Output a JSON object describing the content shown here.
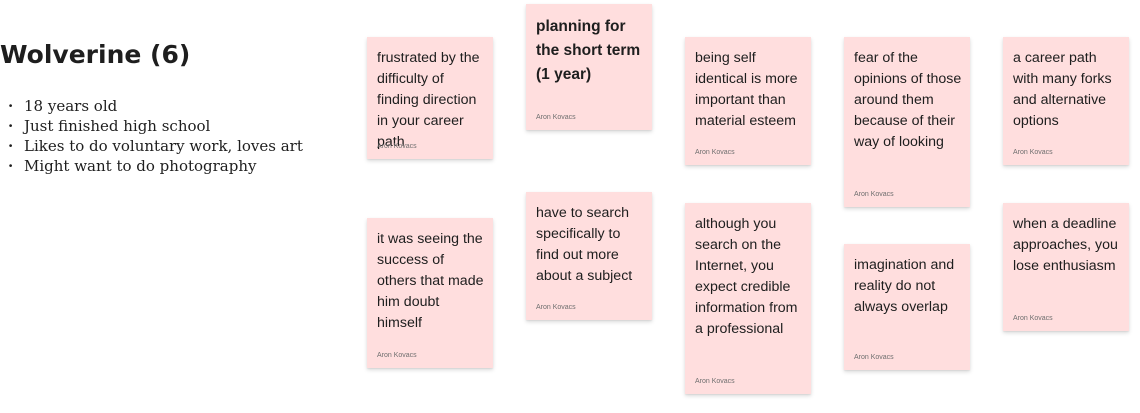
{
  "persona": {
    "title": "Wolverine (6)",
    "traits": [
      "18 years old",
      "Just finished high school",
      "Likes to do voluntary work, loves art",
      "Might want to do photography"
    ]
  },
  "notes": [
    {
      "text": "frustrated by the difficulty of finding direction in your career path",
      "author": "Aron Kovacs"
    },
    {
      "text": "planning for the short term (1 year)",
      "author": "Aron Kovacs"
    },
    {
      "text": "being self identical is more important than material esteem",
      "author": "Aron Kovacs"
    },
    {
      "text": "fear of the opinions of those around them because of their way of looking",
      "author": "Aron Kovacs"
    },
    {
      "text": "a career path with many forks and alternative options",
      "author": "Aron Kovacs"
    },
    {
      "text": "it was seeing the success of others that made him doubt himself",
      "author": "Aron Kovacs"
    },
    {
      "text": "have to search specifically to find out more about a subject",
      "author": "Aron Kovacs"
    },
    {
      "text": "although you search on the Internet, you expect credible information from a professional",
      "author": "Aron Kovacs"
    },
    {
      "text": "imagination and reality do not always overlap",
      "author": "Aron Kovacs"
    },
    {
      "text": "when a deadline approaches, you lose enthusiasm",
      "author": "Aron Kovacs"
    }
  ],
  "colors": {
    "note_background": "#ffdede",
    "text": "#1e1e1e",
    "author_text": "#6f6f6f"
  }
}
